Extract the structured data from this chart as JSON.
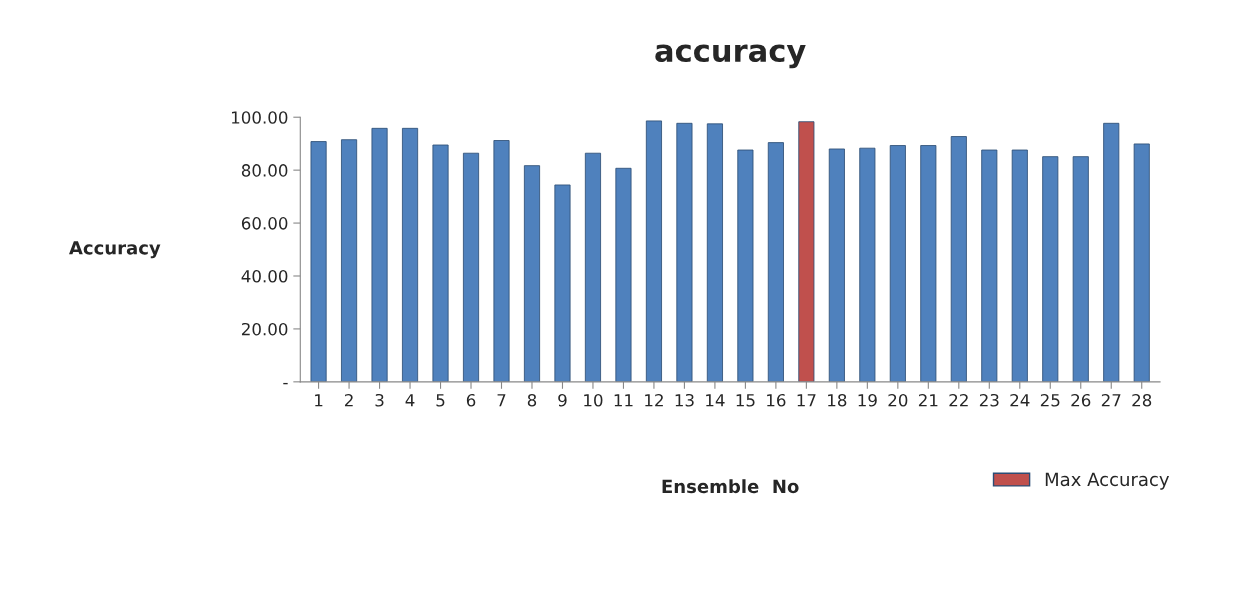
{
  "chart_data": {
    "type": "bar",
    "title": "accuracy",
    "xlabel": "Ensemble  No",
    "ylabel": "Accuracy",
    "categories": [
      "1",
      "2",
      "3",
      "4",
      "5",
      "6",
      "7",
      "8",
      "9",
      "10",
      "11",
      "12",
      "13",
      "14",
      "15",
      "16",
      "17",
      "18",
      "19",
      "20",
      "21",
      "22",
      "23",
      "24",
      "25",
      "26",
      "27",
      "28"
    ],
    "series": [
      {
        "color": "#4f81bd",
        "values": [
          90.8,
          91.5,
          95.8,
          95.8,
          89.5,
          86.4,
          91.2,
          81.7,
          74.4,
          86.4,
          80.7,
          98.6,
          97.7,
          97.5,
          87.6,
          90.4,
          null,
          88.0,
          88.3,
          89.3,
          89.3,
          92.7,
          87.6,
          87.6,
          85.1,
          85.1,
          97.7,
          89.9
        ]
      },
      {
        "name": "Max Accuracy",
        "color": "#c0504d",
        "values": [
          null,
          null,
          null,
          null,
          null,
          null,
          null,
          null,
          null,
          null,
          null,
          null,
          null,
          null,
          null,
          null,
          98.3,
          null,
          null,
          null,
          null,
          null,
          null,
          null,
          null,
          null,
          null,
          null
        ]
      }
    ],
    "ylim": [
      0,
      100
    ],
    "yticks": [
      {
        "value": 0,
        "label": "-"
      },
      {
        "value": 20,
        "label": "20.00"
      },
      {
        "value": 40,
        "label": "40.00"
      },
      {
        "value": 60,
        "label": "60.00"
      },
      {
        "value": 80,
        "label": "80.00"
      },
      {
        "value": 100,
        "label": "100.00"
      }
    ],
    "grid": false,
    "legend": "bottom right"
  }
}
